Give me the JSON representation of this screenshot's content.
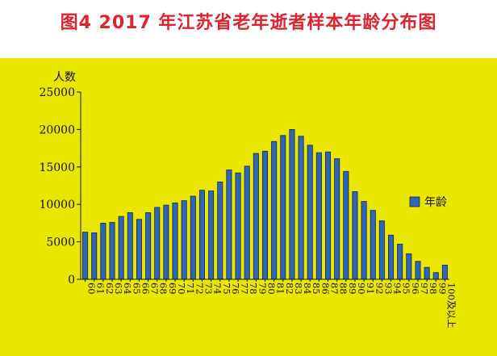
{
  "title": "图4  2017 年江苏省老年逝者样本年龄分布图",
  "colors": {
    "title": "#e2222d",
    "background": "#ebe600",
    "bar_fill": "#2f66b6",
    "bar_stroke": "#102a55",
    "axis": "#111111"
  },
  "chart_data": {
    "type": "bar",
    "ylabel": "人数",
    "xlabel": "",
    "ylim": [
      0,
      25000
    ],
    "yticks": [
      0,
      5000,
      10000,
      15000,
      20000,
      25000
    ],
    "grid": false,
    "legend_position": "right",
    "categories": [
      "60",
      "61",
      "62",
      "63",
      "64",
      "65",
      "66",
      "67",
      "68",
      "69",
      "70",
      "71",
      "72",
      "73",
      "74",
      "75",
      "76",
      "77",
      "78",
      "79",
      "80",
      "81",
      "82",
      "83",
      "84",
      "85",
      "86",
      "87",
      "88",
      "89",
      "90",
      "91",
      "92",
      "93",
      "94",
      "95",
      "96",
      "97",
      "98",
      "99",
      "100及以上"
    ],
    "series": [
      {
        "name": "年龄",
        "values": [
          6300,
          6200,
          7500,
          7600,
          8400,
          8900,
          8000,
          8900,
          9600,
          9900,
          10200,
          10500,
          11100,
          11900,
          11800,
          13000,
          14600,
          14200,
          15100,
          16800,
          17100,
          18400,
          19200,
          20000,
          19100,
          17900,
          16900,
          17000,
          16100,
          14400,
          11700,
          10400,
          9200,
          7800,
          5900,
          4700,
          3400,
          2400,
          1600,
          900,
          1900
        ]
      }
    ]
  }
}
